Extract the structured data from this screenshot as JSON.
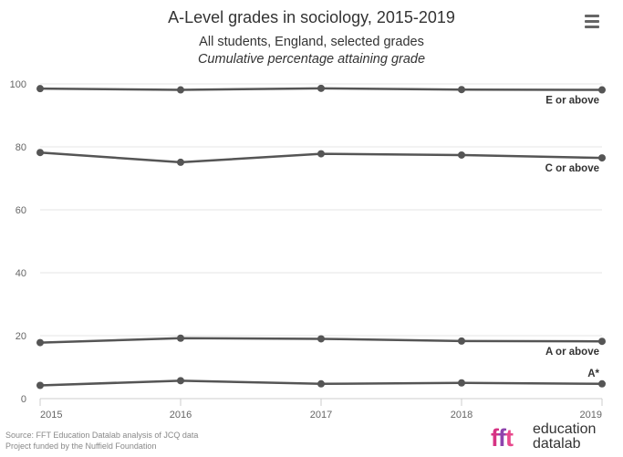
{
  "title": "A-Level grades in sociology, 2015-2019",
  "subtitle": "All students, England, selected grades",
  "subtitle_italic": "Cumulative percentage attaining grade",
  "menu_icon": "hamburger-menu-icon",
  "credits": {
    "line1": "Source: FFT Education Datalab analysis of JCQ data",
    "line2": "Project funded by the Nuffield Foundation"
  },
  "logo": {
    "mark": "fft",
    "line1": "education",
    "line2": "datalab",
    "colors": {
      "f": "#d63384",
      "f2": "#8e44ad",
      "t": "#e8488c"
    }
  },
  "chart_data": {
    "type": "line",
    "categories": [
      "2015",
      "2016",
      "2017",
      "2018",
      "2019"
    ],
    "ylim": [
      0,
      100
    ],
    "yticks": [
      "0",
      "20",
      "40",
      "60",
      "80",
      "100"
    ],
    "grid": true,
    "line_color": "#555555",
    "series": [
      {
        "name": "E or above",
        "values": [
          98.5,
          98.1,
          98.6,
          98.2,
          98.1
        ]
      },
      {
        "name": "C or above",
        "values": [
          78.2,
          75.1,
          77.8,
          77.4,
          76.5
        ]
      },
      {
        "name": "A or above",
        "values": [
          17.8,
          19.2,
          19.0,
          18.3,
          18.2
        ]
      },
      {
        "name": "A*",
        "values": [
          4.2,
          5.7,
          4.7,
          5.0,
          4.7
        ]
      }
    ]
  }
}
